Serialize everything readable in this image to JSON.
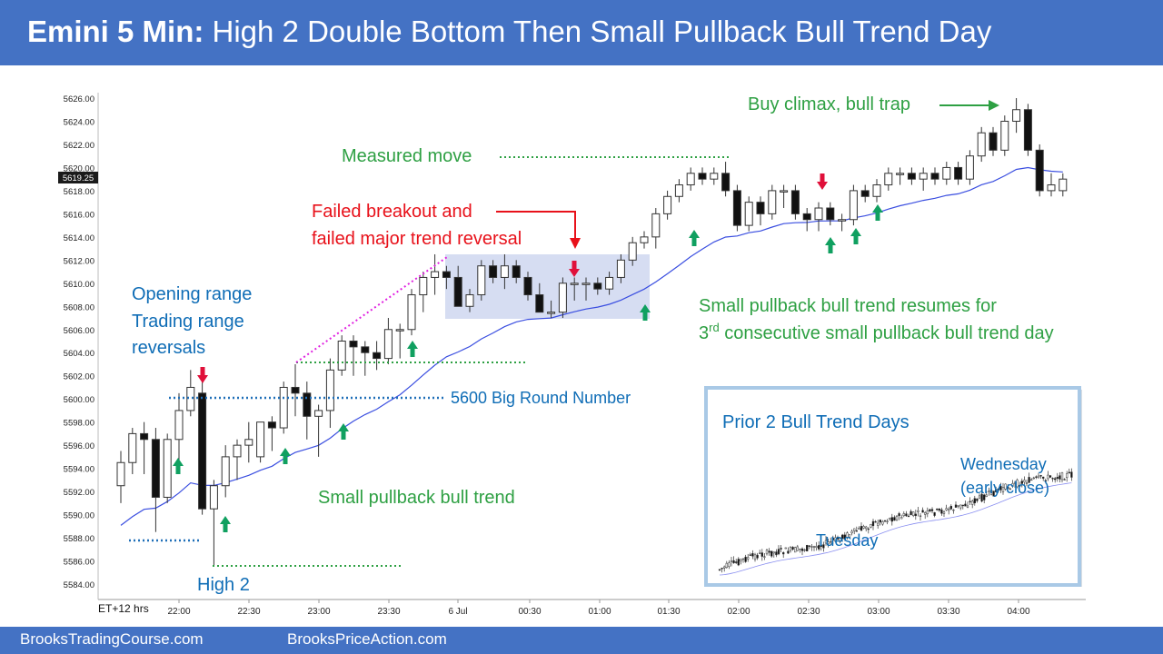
{
  "header": {
    "title_bold": "Emini 5 Min:",
    "title_rest": "High 2 Double Bottom Then Small Pullback Bull Trend Day"
  },
  "footer": {
    "left_link": "BrooksTradingCourse.com",
    "right_link": "BrooksPriceAction.com"
  },
  "colors": {
    "header_bg": "#4472c4",
    "green_annotation": "#2ea043",
    "red_annotation": "#e8111a",
    "blue_annotation": "#0f6db6",
    "ema_line": "#3a4ee0",
    "up_arrow": "#10a060",
    "down_arrow": "#e0103a",
    "magenta_line": "#e020e0"
  },
  "chart_data": {
    "type": "candlestick",
    "timeframe": "5 Min",
    "xlabel": "ET+12 hrs",
    "x_tick_labels": [
      "22:00",
      "22:30",
      "23:00",
      "23:30",
      "6 Jul",
      "00:30",
      "01:00",
      "01:30",
      "02:00",
      "02:30",
      "03:00",
      "03:30",
      "04:00"
    ],
    "y_tick_labels": [
      "5584.00",
      "5586.00",
      "5588.00",
      "5590.00",
      "5592.00",
      "5594.00",
      "5596.00",
      "5598.00",
      "5600.00",
      "5602.00",
      "5604.00",
      "5606.00",
      "5608.00",
      "5610.00",
      "5612.00",
      "5614.00",
      "5616.00",
      "5618.00",
      "5620.00",
      "5622.00",
      "5624.00",
      "5626.00"
    ],
    "ylim": [
      5583,
      5627
    ],
    "last_price": "5619.25",
    "bars": [
      [
        5592.5,
        5595.5,
        5591.0,
        5594.5
      ],
      [
        5594.5,
        5597.5,
        5593.5,
        5597.0
      ],
      [
        5597.0,
        5598.0,
        5593.5,
        5596.5
      ],
      [
        5596.5,
        5597.5,
        5588.5,
        5591.5
      ],
      [
        5591.5,
        5597.0,
        5591.0,
        5596.5
      ],
      [
        5596.5,
        5600.5,
        5594.5,
        5599.0
      ],
      [
        5599.0,
        5602.5,
        5598.5,
        5601.0
      ],
      [
        5600.5,
        5601.5,
        5590.0,
        5590.5
      ],
      [
        5590.5,
        5593.0,
        5585.5,
        5592.5
      ],
      [
        5592.5,
        5596.0,
        5591.5,
        5595.0
      ],
      [
        5595.0,
        5596.5,
        5593.0,
        5596.0
      ],
      [
        5596.0,
        5598.0,
        5594.5,
        5596.5
      ],
      [
        5595.0,
        5598.0,
        5594.5,
        5598.0
      ],
      [
        5598.0,
        5598.5,
        5595.5,
        5597.5
      ],
      [
        5597.5,
        5601.5,
        5597.0,
        5601.0
      ],
      [
        5601.0,
        5603.0,
        5598.5,
        5600.5
      ],
      [
        5600.5,
        5601.5,
        5596.5,
        5598.5
      ],
      [
        5598.5,
        5599.5,
        5595.0,
        5599.0
      ],
      [
        5599.0,
        5603.5,
        5597.5,
        5602.5
      ],
      [
        5602.5,
        5605.5,
        5602.0,
        5605.0
      ],
      [
        5605.0,
        5605.5,
        5602.0,
        5604.5
      ],
      [
        5604.5,
        5605.0,
        5602.0,
        5604.0
      ],
      [
        5604.0,
        5605.0,
        5602.5,
        5603.5
      ],
      [
        5603.5,
        5607.0,
        5603.0,
        5606.0
      ],
      [
        5606.0,
        5606.5,
        5603.5,
        5606.0
      ],
      [
        5606.0,
        5609.5,
        5605.5,
        5609.0
      ],
      [
        5609.0,
        5611.0,
        5607.5,
        5610.5
      ],
      [
        5610.5,
        5612.5,
        5609.0,
        5611.0
      ],
      [
        5611.0,
        5611.5,
        5609.5,
        5610.5
      ],
      [
        5610.5,
        5611.5,
        5608.0,
        5608.0
      ],
      [
        5608.0,
        5609.5,
        5607.5,
        5609.0
      ],
      [
        5609.0,
        5612.0,
        5608.5,
        5611.5
      ],
      [
        5611.5,
        5612.0,
        5610.0,
        5610.5
      ],
      [
        5610.5,
        5612.5,
        5609.5,
        5611.5
      ],
      [
        5611.5,
        5612.0,
        5610.0,
        5610.5
      ],
      [
        5610.5,
        5611.0,
        5608.5,
        5609.0
      ],
      [
        5609.0,
        5610.0,
        5607.5,
        5607.5
      ],
      [
        5607.5,
        5608.5,
        5607.0,
        5607.5
      ],
      [
        5607.5,
        5610.5,
        5607.0,
        5610.0
      ],
      [
        5610.0,
        5610.5,
        5608.5,
        5610.0
      ],
      [
        5610.0,
        5610.5,
        5608.5,
        5610.0
      ],
      [
        5610.0,
        5610.5,
        5609.0,
        5609.5
      ],
      [
        5609.5,
        5611.0,
        5609.0,
        5610.5
      ],
      [
        5610.5,
        5612.5,
        5610.0,
        5612.0
      ],
      [
        5612.0,
        5614.0,
        5611.5,
        5613.5
      ],
      [
        5613.5,
        5614.5,
        5613.0,
        5614.0
      ],
      [
        5614.0,
        5616.5,
        5613.0,
        5616.0
      ],
      [
        5616.0,
        5618.0,
        5615.5,
        5617.5
      ],
      [
        5617.5,
        5619.0,
        5617.0,
        5618.5
      ],
      [
        5618.5,
        5620.0,
        5618.0,
        5619.5
      ],
      [
        5619.5,
        5620.0,
        5618.5,
        5619.0
      ],
      [
        5619.0,
        5620.0,
        5618.5,
        5619.5
      ],
      [
        5619.5,
        5620.5,
        5617.5,
        5618.0
      ],
      [
        5618.0,
        5618.5,
        5614.5,
        5615.0
      ],
      [
        5615.0,
        5617.5,
        5614.5,
        5617.0
      ],
      [
        5617.0,
        5617.5,
        5615.0,
        5616.0
      ],
      [
        5616.0,
        5618.5,
        5615.5,
        5618.0
      ],
      [
        5618.0,
        5618.5,
        5616.5,
        5618.0
      ],
      [
        5618.0,
        5618.5,
        5615.5,
        5616.0
      ],
      [
        5616.0,
        5616.5,
        5614.5,
        5615.5
      ],
      [
        5615.5,
        5617.0,
        5614.5,
        5616.5
      ],
      [
        5616.5,
        5617.0,
        5615.0,
        5615.5
      ],
      [
        5615.5,
        5616.0,
        5614.5,
        5615.5
      ],
      [
        5615.5,
        5618.5,
        5615.0,
        5618.0
      ],
      [
        5618.0,
        5618.5,
        5617.0,
        5617.5
      ],
      [
        5617.5,
        5619.0,
        5617.0,
        5618.5
      ],
      [
        5618.5,
        5620.0,
        5618.0,
        5619.5
      ],
      [
        5619.5,
        5620.0,
        5618.5,
        5619.5
      ],
      [
        5619.5,
        5620.0,
        5618.5,
        5619.0
      ],
      [
        5619.0,
        5620.0,
        5618.0,
        5619.5
      ],
      [
        5619.5,
        5620.0,
        5618.5,
        5619.0
      ],
      [
        5619.0,
        5620.5,
        5618.5,
        5620.0
      ],
      [
        5620.0,
        5620.5,
        5618.5,
        5619.0
      ],
      [
        5619.0,
        5621.5,
        5618.5,
        5621.0
      ],
      [
        5621.0,
        5623.5,
        5620.5,
        5623.0
      ],
      [
        5623.0,
        5623.5,
        5621.0,
        5621.5
      ],
      [
        5621.5,
        5624.5,
        5621.0,
        5624.0
      ],
      [
        5624.0,
        5626.0,
        5623.0,
        5625.0
      ],
      [
        5625.0,
        5625.5,
        5621.0,
        5621.5
      ],
      [
        5621.5,
        5622.0,
        5617.5,
        5618.0
      ],
      [
        5618.0,
        5619.5,
        5617.5,
        5618.5
      ],
      [
        5618.0,
        5619.5,
        5617.5,
        5619.0
      ]
    ],
    "ema_start": 5588.5,
    "annotations": {
      "opening_range": [
        "Opening range",
        "Trading range",
        "reversals"
      ],
      "failed_breakout": [
        "Failed breakout and",
        "failed major trend reversal"
      ],
      "measured_move": "Measured move",
      "buy_climax": "Buy climax, bull trap",
      "small_pullback_resumes": "Small pullback bull trend resumes for",
      "consecutive_prefix": "3",
      "consecutive_sup": "rd",
      "consecutive_rest": " consecutive small pullback bull trend day",
      "big_round_number": "5600 Big Round Number",
      "small_pullback_bull_trend": "Small pullback bull trend",
      "high_2": "High 2"
    },
    "inset": {
      "title": "Prior 2 Bull Trend Days",
      "tuesday_label": "Tuesday",
      "wednesday_label": [
        "Wednesday",
        "(early close)"
      ]
    }
  }
}
